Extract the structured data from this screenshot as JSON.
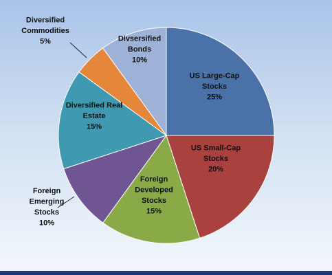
{
  "chart_data": {
    "type": "pie",
    "title": "",
    "start_angle_deg": 0,
    "direction": "clockwise",
    "slices": [
      {
        "label_lines": [
          "US Large-Cap",
          "Stocks",
          "25%"
        ],
        "value": 25,
        "color": "#4a72a8"
      },
      {
        "label_lines": [
          "US Small-Cap",
          "Stocks",
          "20%"
        ],
        "value": 20,
        "color": "#a9423f"
      },
      {
        "label_lines": [
          "Foreign",
          "Developed",
          "Stocks",
          "15%"
        ],
        "value": 15,
        "color": "#8aaa48"
      },
      {
        "label_lines": [
          "Foreign",
          "Emerging",
          "Stocks",
          "10%"
        ],
        "value": 10,
        "color": "#6f5692"
      },
      {
        "label_lines": [
          "Diversified Real",
          "Estate",
          "15%"
        ],
        "value": 15,
        "color": "#3f9ab1"
      },
      {
        "label_lines": [
          "Diversified",
          "Commodities",
          "5%"
        ],
        "value": 5,
        "color": "#e5873b"
      },
      {
        "label_lines": [
          "Divsersified",
          "Bonds",
          "10%"
        ],
        "value": 10,
        "color": "#9db2d6"
      }
    ]
  }
}
